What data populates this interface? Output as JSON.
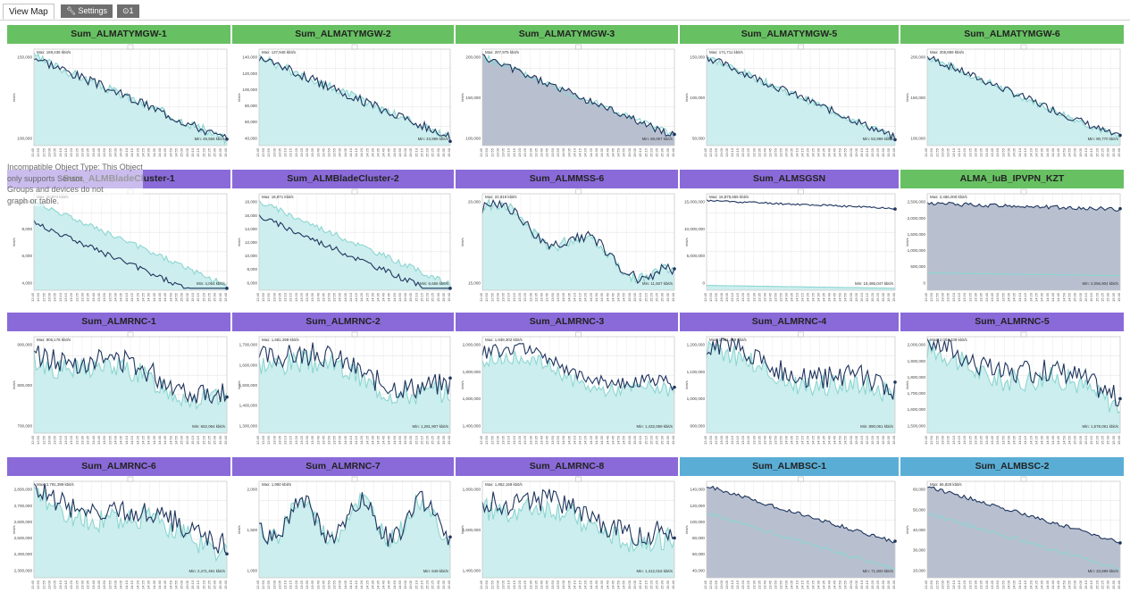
{
  "tabs": {
    "view_map": "View Map",
    "settings": "Settings",
    "settings_icon": "wrench-icon",
    "extra": "⊙1",
    "extra_icon": "pin-icon"
  },
  "overlay": {
    "line1": "Incompatible Object Type: This Object",
    "line2": "only supports Sensor.",
    "line3": "Groups and devices do not",
    "line4": "graph or table."
  },
  "colors": {
    "green": "#67c162",
    "purple": "#8a6ad8",
    "blue": "#5aaed6",
    "teal_fill": "#cdeeee",
    "teal_line": "#8cd6d2",
    "navy_line": "#1f355e",
    "slate_fill": "#b8c0d0"
  },
  "x_tick_labels": [
    "12:45",
    "12:50",
    "12:55",
    "13:00",
    "13:05",
    "13:10",
    "13:15",
    "13:20",
    "13:25",
    "13:30",
    "13:35",
    "13:40",
    "13:45",
    "13:50",
    "13:55",
    "14:00",
    "14:05",
    "14:10",
    "14:15",
    "14:20",
    "14:25",
    "14:30",
    "14:35",
    "14:40",
    "14:45",
    "14:50",
    "14:55",
    "15:00",
    "15:05",
    "15:10",
    "15:15",
    "15:20",
    "15:25",
    "15:30",
    "15:35",
    "15:40"
  ],
  "tiles": [
    {
      "title": "Sum_ALMATYMGW-1",
      "color": "green",
      "ylabel": "kbit/s",
      "yticks": [
        "150,000",
        "100,000"
      ],
      "max": "Max: 169,436 kbit/s",
      "min": "Min: 49,566 kbit/s",
      "style": "teal",
      "shape": "down",
      "noise": 0.05,
      "end": 0.06
    },
    {
      "title": "Sum_ALMATYMGW-2",
      "color": "green",
      "ylabel": "kbit/s",
      "yticks": [
        "140,000",
        "120,000",
        "100,000",
        "80,000",
        "60,000",
        "40,000"
      ],
      "max": "Max: 137,948 kbit/s",
      "min": "Min: 43,998 kbit/s",
      "style": "teal",
      "shape": "down",
      "noise": 0.05,
      "end": 0.08
    },
    {
      "title": "Sum_ALMATYMGW-3",
      "color": "green",
      "ylabel": "kbit/s",
      "yticks": [
        "200,000",
        "150,000",
        "100,000"
      ],
      "max": "Max: 207,975 kbit/s",
      "min": "Min: 69,067 kbit/s",
      "style": "slate",
      "shape": "down",
      "noise": 0.04,
      "end": 0.1
    },
    {
      "title": "Sum_ALMATYMGW-5",
      "color": "green",
      "ylabel": "kbit/s",
      "yticks": [
        "150,000",
        "100,000",
        "50,000"
      ],
      "max": "Max: 171,711 kbit/s",
      "min": "Min: 53,999 kbit/s",
      "style": "teal",
      "shape": "down",
      "noise": 0.04,
      "end": 0.08
    },
    {
      "title": "Sum_ALMATYMGW-6",
      "color": "green",
      "ylabel": "kbit/s",
      "yticks": [
        "200,000",
        "150,000",
        "100,000"
      ],
      "max": "Max: 205,859 kbit/s",
      "min": "Min: 90,770 kbit/s",
      "style": "teal",
      "shape": "down",
      "noise": 0.04,
      "end": 0.08
    },
    {
      "title": "Sum_ALMBladeCluster-1",
      "color": "purple",
      "ylabel": "kbit/s",
      "yticks": [
        "10,000",
        "8,000",
        "6,000",
        "4,000"
      ],
      "max": "Max: 10,974 kbit/s",
      "min": "Min: 4,064 kbit/s",
      "style": "teal",
      "shape": "down",
      "noise": 0.03,
      "end": 0.05,
      "dark_offset": 0.22
    },
    {
      "title": "Sum_ALMBladeCluster-2",
      "color": "purple",
      "ylabel": "kbit/s",
      "yticks": [
        "18,000",
        "16,000",
        "14,000",
        "12,000",
        "10,000",
        "8,000",
        "6,000"
      ],
      "max": "Max: 18,871 kbit/s",
      "min": "Min: 6,666 kbit/s",
      "style": "teal",
      "shape": "down",
      "noise": 0.03,
      "end": 0.06,
      "dark_offset": 0.15
    },
    {
      "title": "Sum_ALMMSS-6",
      "color": "purple",
      "ylabel": "kbit/s",
      "yticks": [
        "20,000",
        "15,000"
      ],
      "max": "Max: 22,919 kbit/s",
      "min": "Min: 11,507 kbit/s",
      "style": "teal",
      "shape": "mss",
      "noise": 0.06,
      "end": 0.1
    },
    {
      "title": "Sum_ALMSGSN",
      "color": "purple",
      "ylabel": "kbit/s",
      "yticks": [
        "15,000,000",
        "10,000,000",
        "5,000,000",
        "0"
      ],
      "max": "Max: 16,875,655 kbit/s",
      "min": "Min: 15,486,047 kbit/s",
      "style": "teal",
      "shape": "sgsn",
      "noise": 0.01,
      "end": 0.2
    },
    {
      "title": "ALMA_IuB_IPVPN_KZT",
      "color": "green",
      "ylabel": "kbit/s",
      "yticks": [
        "2,500,000",
        "2,000,000",
        "1,500,000",
        "1,000,000",
        "500,000",
        "0"
      ],
      "max": "Max: 2,466,000 kbit/s",
      "min": "Min: 2,056,904 kbit/s",
      "style": "slate",
      "shape": "iub",
      "noise": 0.02,
      "end": 0.6
    },
    {
      "title": "Sum_ALMRNC-1",
      "color": "purple",
      "ylabel": "kbit/s",
      "yticks": [
        "900,000",
        "800,000",
        "700,000"
      ],
      "max": "Max: 906,178 kbit/s",
      "min": "Min: 652,064 kbit/s",
      "style": "teal",
      "shape": "noisy",
      "noise": 0.12,
      "end": 0.1
    },
    {
      "title": "Sum_ALMRNC-2",
      "color": "purple",
      "ylabel": "kbit/s",
      "yticks": [
        "1,700,000",
        "1,600,000",
        "1,500,000",
        "1,400,000",
        "1,300,000"
      ],
      "max": "Max: 1,681,399 kbit/s",
      "min": "Min: 1,281,907 kbit/s",
      "style": "teal",
      "shape": "noisy",
      "noise": 0.12,
      "end": 0.12
    },
    {
      "title": "Sum_ALMRNC-3",
      "color": "purple",
      "ylabel": "kbit/s",
      "yticks": [
        "2,000,000",
        "1,800,000",
        "1,600,000",
        "1,400,000"
      ],
      "max": "Max: 1,939,302 kbit/s",
      "min": "Min: 1,432,069 kbit/s",
      "style": "teal",
      "shape": "noisy",
      "noise": 0.07,
      "end": 0.05
    },
    {
      "title": "Sum_ALMRNC-4",
      "color": "purple",
      "ylabel": "kbit/s",
      "yticks": [
        "1,200,000",
        "1,100,000",
        "1,000,000",
        "900,000"
      ],
      "max": "Max: 1,201,449 kbit/s",
      "min": "Min: 890,061 kbit/s",
      "style": "teal",
      "shape": "noisy",
      "noise": 0.12,
      "end": 0.1
    },
    {
      "title": "Sum_ALMRNC-5",
      "color": "purple",
      "ylabel": "kbit/s",
      "yticks": [
        "2,000,000",
        "1,900,000",
        "1,800,000",
        "1,700,000",
        "1,600,000",
        "1,500,000"
      ],
      "max": "Max: 2,001,339 kbit/s",
      "min": "Min: 1,578,061 kbit/s",
      "style": "teal",
      "shape": "noisy",
      "noise": 0.12,
      "end": 0.15
    },
    {
      "title": "Sum_ALMRNC-6",
      "color": "purple",
      "ylabel": "kbit/s",
      "yticks": [
        "2,800,000",
        "2,700,000",
        "2,600,000",
        "2,500,000",
        "2,400,000",
        "2,300,000"
      ],
      "max": "Max: 2,791,399 kbit/s",
      "min": "Min: 2,471,491 kbit/s",
      "style": "teal",
      "shape": "noisy",
      "noise": 0.12,
      "end": 0.15
    },
    {
      "title": "Sum_ALMRNC-7",
      "color": "purple",
      "ylabel": "kbit/s",
      "yticks": [
        "2,000",
        "1,500",
        "1,000"
      ],
      "max": "Max: 1,950 kbit/s",
      "min": "Min: 649 kbit/s",
      "style": "teal",
      "shape": "rnc7",
      "noise": 0.1,
      "end": 0.3
    },
    {
      "title": "Sum_ALMRNC-8",
      "color": "purple",
      "ylabel": "kbit/s",
      "yticks": [
        "1,800,000",
        "1,600,000",
        "1,400,000"
      ],
      "max": "Max: 1,852,169 kbit/s",
      "min": "Min: 1,412,016 kbit/s",
      "style": "teal",
      "shape": "noisy",
      "noise": 0.12,
      "end": 0.1
    },
    {
      "title": "Sum_ALMBSC-1",
      "color": "blue",
      "ylabel": "kbit/s",
      "yticks": [
        "140,000",
        "120,000",
        "100,000",
        "80,000",
        "60,000",
        "40,000"
      ],
      "max": "",
      "min": "Min: 71,800 kbit/s",
      "style": "slate",
      "shape": "bsc",
      "noise": 0.02,
      "end": 0.3
    },
    {
      "title": "Sum_ALMBSC-2",
      "color": "blue",
      "ylabel": "kbit/s",
      "yticks": [
        "60,000",
        "50,000",
        "40,000",
        "30,000",
        "20,000"
      ],
      "max": "Max: 66,828 kbit/s",
      "min": "Min: 33,699 kbit/s",
      "style": "slate",
      "shape": "bsc",
      "noise": 0.02,
      "end": 0.35
    }
  ]
}
